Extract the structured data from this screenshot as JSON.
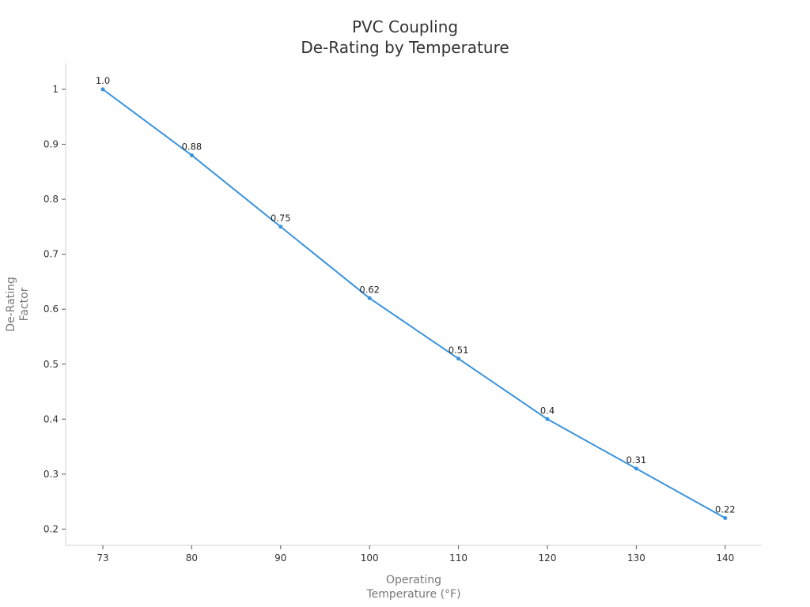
{
  "chart_data": {
    "type": "line",
    "title": "PVC Coupling\nDe-Rating by Temperature",
    "title_lines": [
      "PVC Coupling",
      "De-Rating by Temperature"
    ],
    "xlabel": "Operating Temperature (°F)",
    "xlabel_lines": [
      "Operating",
      "Temperature (°F)"
    ],
    "ylabel": "De-Rating Factor",
    "ylabel_lines": [
      "De-Rating",
      "Factor"
    ],
    "categories": [
      "73",
      "80",
      "90",
      "100",
      "110",
      "120",
      "130",
      "140"
    ],
    "x": [
      73,
      80,
      90,
      100,
      110,
      120,
      130,
      140
    ],
    "values": [
      1.0,
      0.88,
      0.75,
      0.62,
      0.51,
      0.4,
      0.31,
      0.22
    ],
    "data_labels": [
      "1.0",
      "0.88",
      "0.75",
      "0.62",
      "0.51",
      "0.4",
      "0.31",
      "0.22"
    ],
    "yticks": [
      "0.2",
      "0.3",
      "0.4",
      "0.5",
      "0.6",
      "0.7",
      "0.8",
      "0.9",
      "1"
    ],
    "ylim": [
      0.17,
      1.05
    ],
    "grid": false,
    "legend": null,
    "colors": {
      "line": "#3a93dd",
      "axis": "#d0d0d0",
      "text": "#333333",
      "axis_label": "#777777"
    }
  }
}
